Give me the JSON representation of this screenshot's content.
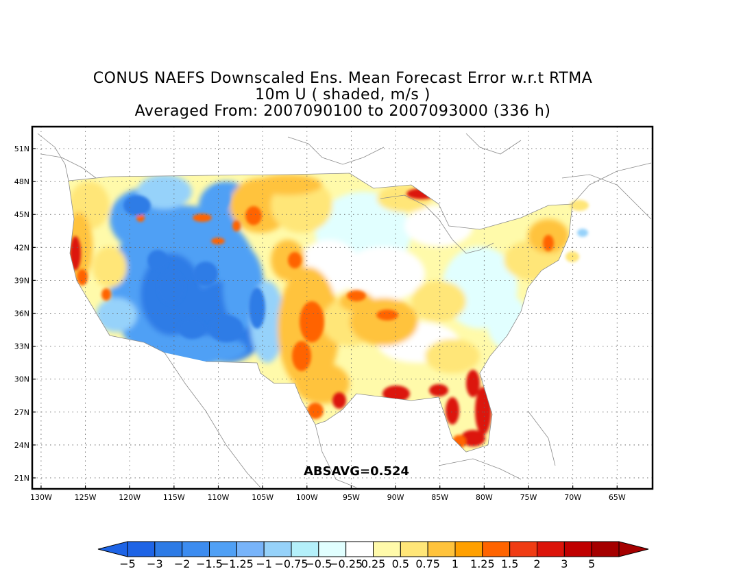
{
  "title": {
    "line1": "CONUS NAEFS Downscaled Ens. Mean Forecast Error w.r.t RTMA",
    "line2": "10m U ( shaded, m/s )",
    "line3": "Averaged From: 2007090100 to 2007093000 (336 h)"
  },
  "map": {
    "lon_min": -131,
    "lon_max": -61,
    "lat_min": 20,
    "lat_max": 53,
    "lat_labels": [
      "21N",
      "24N",
      "27N",
      "30N",
      "33N",
      "36N",
      "39N",
      "42N",
      "45N",
      "48N",
      "51N"
    ],
    "lat_values": [
      21,
      24,
      27,
      30,
      33,
      36,
      39,
      42,
      45,
      48,
      51
    ],
    "lon_labels": [
      "130W",
      "125W",
      "120W",
      "115W",
      "110W",
      "105W",
      "100W",
      "95W",
      "90W",
      "85W",
      "80W",
      "75W",
      "70W",
      "65W"
    ],
    "lon_values": [
      -130,
      -125,
      -120,
      -115,
      -110,
      -105,
      -100,
      -95,
      -90,
      -85,
      -80,
      -75,
      -70,
      -65
    ],
    "grid": true,
    "absavg": "ABSAVG=0.524"
  },
  "colorbar": {
    "labels": [
      "−5",
      "−3",
      "−2",
      "−1.5",
      "−1.25",
      "−1",
      "−0.75",
      "−0.5",
      "−0.25",
      "0.25",
      "0.5",
      "0.75",
      "1",
      "1.25",
      "1.5",
      "2",
      "3",
      "5"
    ],
    "colors": [
      "#1e64e6",
      "#2d7be6",
      "#3c8cf0",
      "#50a0f5",
      "#78b4fa",
      "#96d2fa",
      "#b4f0fa",
      "#e1ffff",
      "#ffffff",
      "#fffaaa",
      "#ffe678",
      "#ffc33c",
      "#ffa000",
      "#ff6400",
      "#f03c14",
      "#dc140a",
      "#c00000",
      "#a50000"
    ]
  },
  "field_colors": {
    "strong_neg": "#2d7be6",
    "neg": "#50a0f5",
    "weak_neg": "#96d2fa",
    "faint_neg": "#e1ffff",
    "faint_pos": "#fffaaa",
    "weak_pos": "#ffe678",
    "pos": "#ffc33c",
    "strong_pos": "#ff6400",
    "very_strong_pos": "#dc140a"
  }
}
